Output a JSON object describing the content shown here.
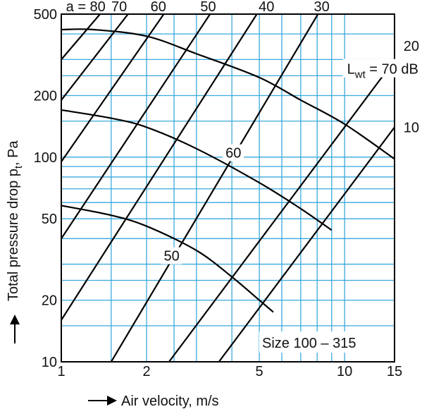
{
  "chart_data": {
    "type": "line",
    "xlabel": "Air velocity, m/s",
    "ylabel": "Total pressure drop  pt, Pa",
    "xscale": "log",
    "yscale": "log",
    "xlim": [
      1,
      15
    ],
    "ylim": [
      10,
      500
    ],
    "grid": true,
    "x_tick_labels": [
      "1",
      "2",
      "5",
      "10",
      "15"
    ],
    "x_ticks": [
      1,
      2,
      5,
      10,
      15
    ],
    "y_tick_labels": [
      "10",
      "20",
      "50",
      "100",
      "200",
      "500"
    ],
    "y_ticks": [
      10,
      20,
      50,
      100,
      200,
      500
    ],
    "x_gridlines": [
      1,
      1.5,
      2,
      2.5,
      3,
      4,
      5,
      6,
      7,
      8,
      9,
      10,
      15
    ],
    "y_gridlines": [
      10,
      15,
      20,
      25,
      30,
      40,
      50,
      60,
      70,
      80,
      90,
      100,
      150,
      200,
      250,
      300,
      400,
      500
    ],
    "annotation": "Size 100 – 315",
    "damper_lines_label": "a = 80",
    "damper_lines": [
      {
        "label": "80",
        "points": [
          [
            1,
            300
          ],
          [
            1.37,
            500
          ]
        ]
      },
      {
        "label": "70",
        "points": [
          [
            1,
            190
          ],
          [
            1.72,
            500
          ]
        ]
      },
      {
        "label": "60",
        "points": [
          [
            1,
            95
          ],
          [
            2.3,
            500
          ]
        ]
      },
      {
        "label": "50",
        "points": [
          [
            1,
            40
          ],
          [
            3.35,
            500
          ]
        ]
      },
      {
        "label": "40",
        "points": [
          [
            1,
            16
          ],
          [
            4.9,
            500
          ]
        ]
      },
      {
        "label": "30",
        "points": [
          [
            1.5,
            10
          ],
          [
            8.05,
            500
          ]
        ]
      },
      {
        "label": "20",
        "points": [
          [
            2.4,
            10
          ],
          [
            14.8,
            290
          ]
        ]
      },
      {
        "label": "10",
        "points": [
          [
            3.6,
            10
          ],
          [
            15,
            140
          ]
        ]
      }
    ],
    "series": [
      {
        "name": "Lwt = 70 dB",
        "points": [
          [
            1,
            420
          ],
          [
            1.3,
            420
          ],
          [
            2,
            390
          ],
          [
            3,
            320
          ],
          [
            5,
            245
          ],
          [
            7,
            190
          ],
          [
            10,
            145
          ],
          [
            15,
            98
          ]
        ]
      },
      {
        "name": "60",
        "points": [
          [
            1,
            170
          ],
          [
            1.5,
            155
          ],
          [
            2,
            140
          ],
          [
            3,
            110
          ],
          [
            5,
            75
          ],
          [
            7,
            56
          ],
          [
            9,
            44
          ]
        ]
      },
      {
        "name": "50",
        "points": [
          [
            1,
            58
          ],
          [
            1.5,
            52
          ],
          [
            2,
            46
          ],
          [
            3,
            35
          ],
          [
            4,
            26
          ],
          [
            5,
            20
          ],
          [
            5.6,
            17.5
          ]
        ]
      }
    ],
    "curve_labels": [
      {
        "text": "Lwt = 70 dB",
        "subscript": "wt",
        "at": [
          10.2,
          270
        ]
      },
      {
        "text": "60",
        "at": [
          3.8,
          105
        ]
      },
      {
        "text": "50",
        "at": [
          2.3,
          33
        ]
      }
    ],
    "damper_line_labels": [
      {
        "text": "a = 80",
        "at": [
          1.22,
          545
        ],
        "anchor": "middle"
      },
      {
        "text": "70",
        "at": [
          1.6,
          545
        ],
        "anchor": "middle"
      },
      {
        "text": "60",
        "at": [
          2.2,
          545
        ],
        "anchor": "middle"
      },
      {
        "text": "50",
        "at": [
          3.3,
          545
        ],
        "anchor": "middle"
      },
      {
        "text": "40",
        "at": [
          5.3,
          545
        ],
        "anchor": "middle"
      },
      {
        "text": "30",
        "at": [
          8.3,
          545
        ],
        "anchor": "middle"
      },
      {
        "text": "20",
        "at": [
          17.2,
          350
        ],
        "anchor": "middle"
      },
      {
        "text": "10",
        "at": [
          17.2,
          140
        ],
        "anchor": "middle"
      }
    ]
  }
}
